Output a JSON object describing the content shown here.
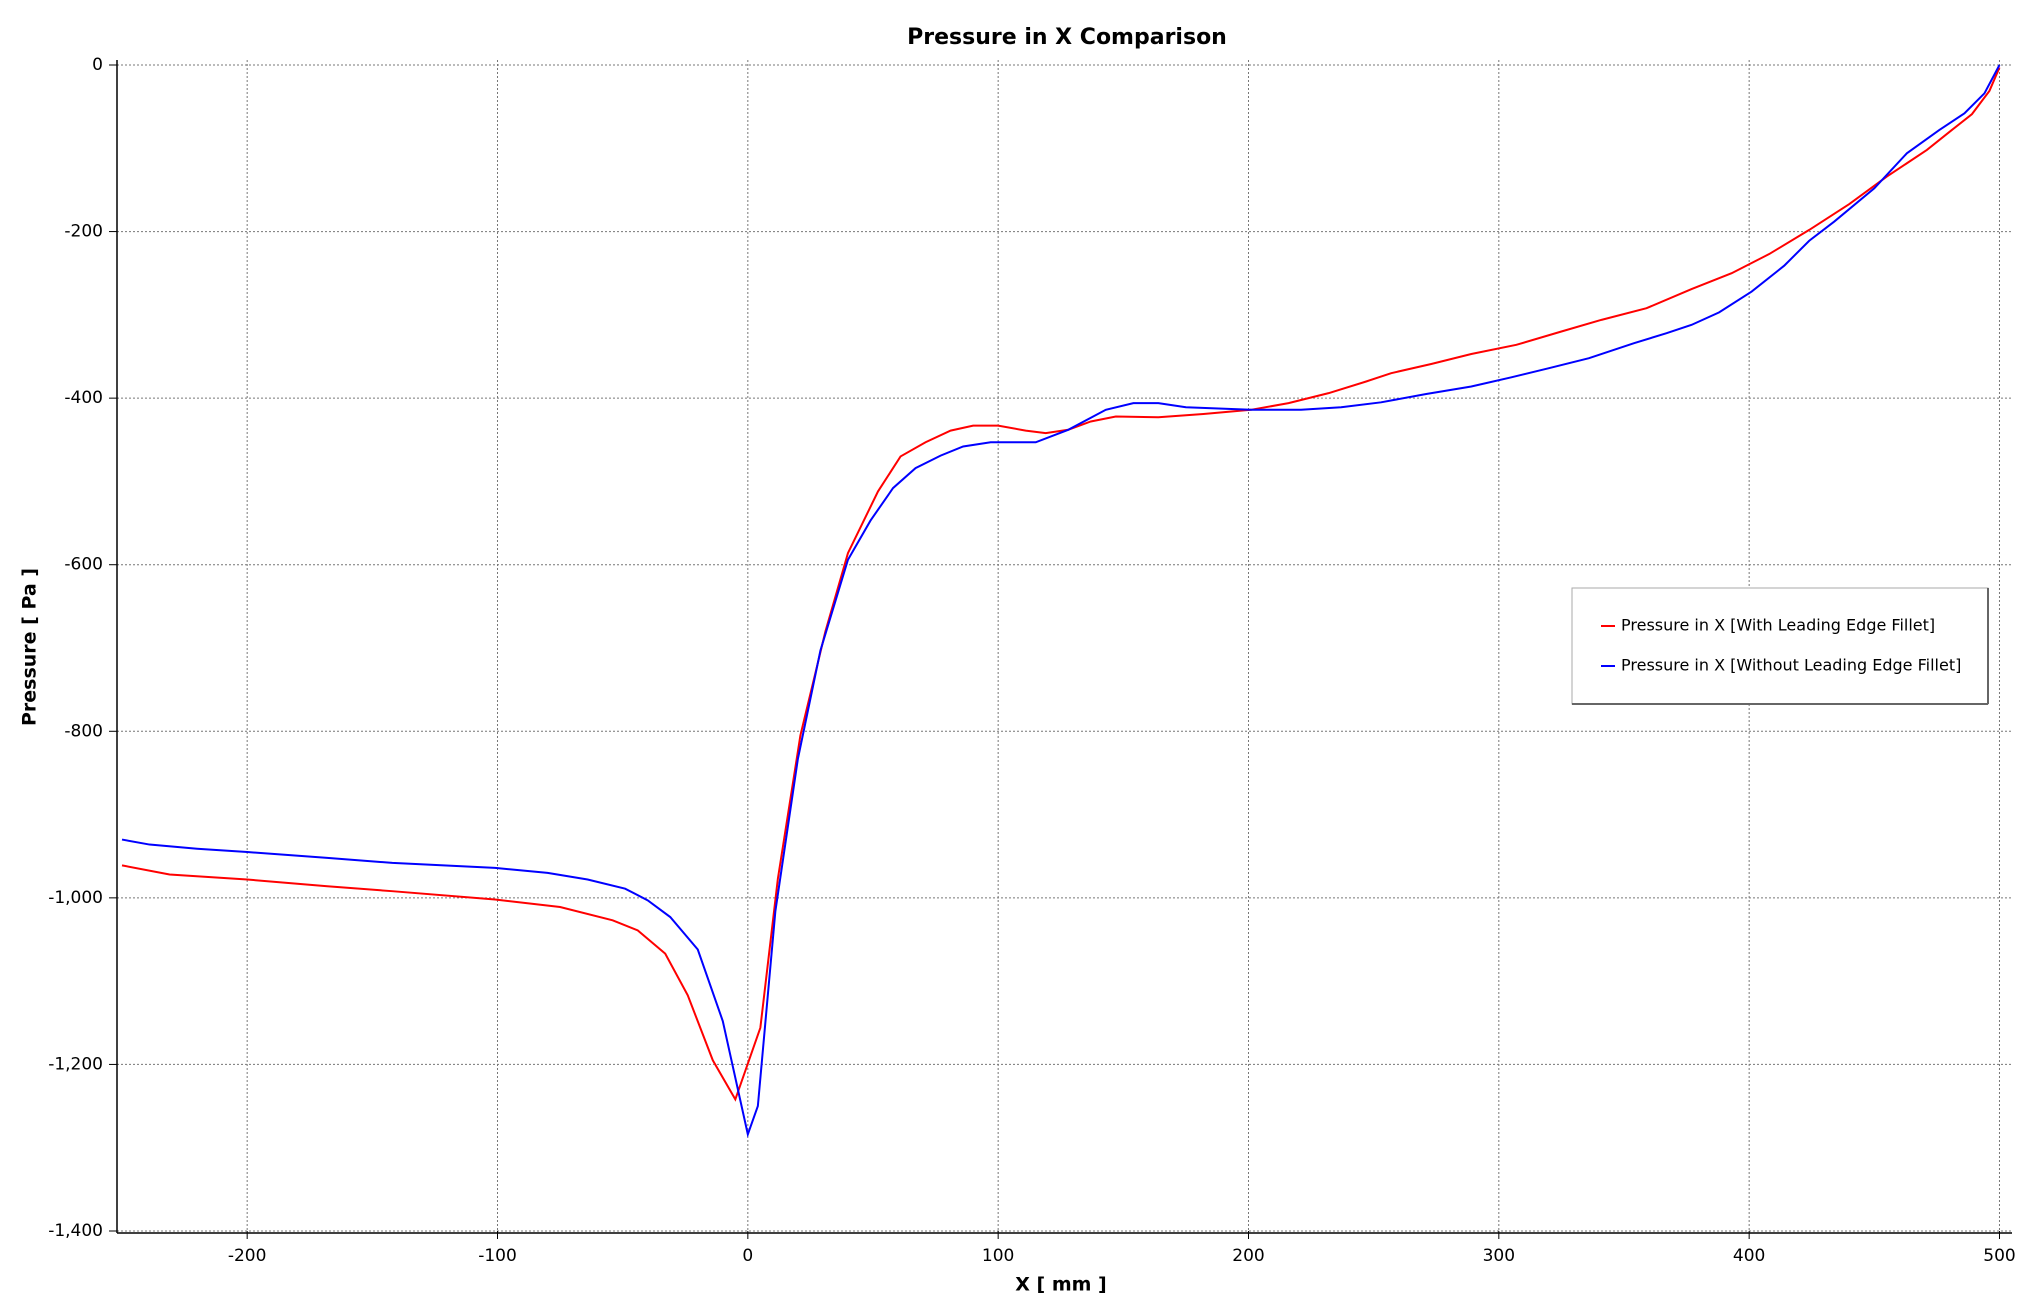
{
  "chart_data": {
    "type": "line",
    "title": "Pressure in X Comparison",
    "x_label": "X [ mm ]",
    "y_label": "Pressure [ Pa ]",
    "xlim": [
      -252,
      505
    ],
    "ylim": [
      -1400,
      0
    ],
    "xticks": [
      -200,
      -100,
      0,
      100,
      200,
      300,
      400,
      500
    ],
    "yticks": [
      0,
      {
        "value": -200,
        "label": "-200"
      },
      {
        "value": -400,
        "label": "-400"
      },
      {
        "value": -600,
        "label": "-600"
      },
      {
        "value": -800,
        "label": "-800"
      },
      {
        "value": -1000,
        "label": "-1,000"
      },
      {
        "value": -1200,
        "label": "-1,200"
      },
      {
        "value": -1400,
        "label": "-1,400"
      }
    ],
    "grid": true,
    "legend_position": "right",
    "series": [
      {
        "name": "Pressure in X [With Leading Edge Fillet]",
        "color": "#ff0000",
        "x": [
          -250,
          -231,
          -200,
          -168,
          -142,
          -101,
          -75,
          -54,
          -44,
          -33,
          -24,
          -14,
          -5,
          5,
          12,
          21,
          31,
          40,
          52,
          61,
          71,
          81,
          90,
          100,
          111,
          119,
          128,
          137,
          147,
          164,
          182,
          201,
          216,
          232,
          247,
          257,
          273,
          289,
          307,
          325,
          341,
          359,
          377,
          393,
          408,
          424,
          440,
          455,
          471,
          481,
          489,
          496,
          500
        ],
        "values": [
          -961,
          -972,
          -978,
          -986,
          -992,
          -1002,
          -1011,
          -1027,
          -1039,
          -1067,
          -1117,
          -1195,
          -1242,
          -1156,
          -977,
          -805,
          -680,
          -586,
          -512,
          -470,
          -453,
          -439,
          -433,
          -433,
          -439,
          -442,
          -438,
          -428,
          -422,
          -423,
          -419,
          -414,
          -406,
          -394,
          -380,
          -370,
          -359,
          -347,
          -336,
          -320,
          -306,
          -292,
          -269,
          -250,
          -227,
          -198,
          -167,
          -134,
          -102,
          -78,
          -59,
          -31,
          -3
        ]
      },
      {
        "name": "Pressure in X [Without Leading Edge Fillet]",
        "color": "#0000ff",
        "x": [
          -250,
          -239,
          -220,
          -200,
          -168,
          -142,
          -101,
          -80,
          -64,
          -49,
          -40,
          -31,
          -20,
          -10,
          0,
          4,
          11,
          20,
          29,
          40,
          49,
          58,
          67,
          77,
          86,
          97,
          115,
          128,
          143,
          154,
          164,
          175,
          201,
          221,
          237,
          253,
          271,
          289,
          305,
          320,
          336,
          354,
          367,
          377,
          388,
          401,
          414,
          424,
          434,
          450,
          463,
          476,
          486,
          494,
          500
        ],
        "values": [
          -930,
          -936,
          -941,
          -945,
          -952,
          -958,
          -964,
          -970,
          -978,
          -989,
          -1003,
          -1023,
          -1062,
          -1148,
          -1284,
          -1250,
          -1016,
          -833,
          -703,
          -594,
          -547,
          -508,
          -484,
          -469,
          -458,
          -453,
          -453,
          -438,
          -414,
          -406,
          -406,
          -411,
          -414,
          -414,
          -411,
          -405,
          -395,
          -386,
          -375,
          -364,
          -352,
          -334,
          -322,
          -312,
          -297,
          -272,
          -241,
          -211,
          -188,
          -148,
          -106,
          -78,
          -58,
          -34,
          0
        ]
      }
    ]
  }
}
